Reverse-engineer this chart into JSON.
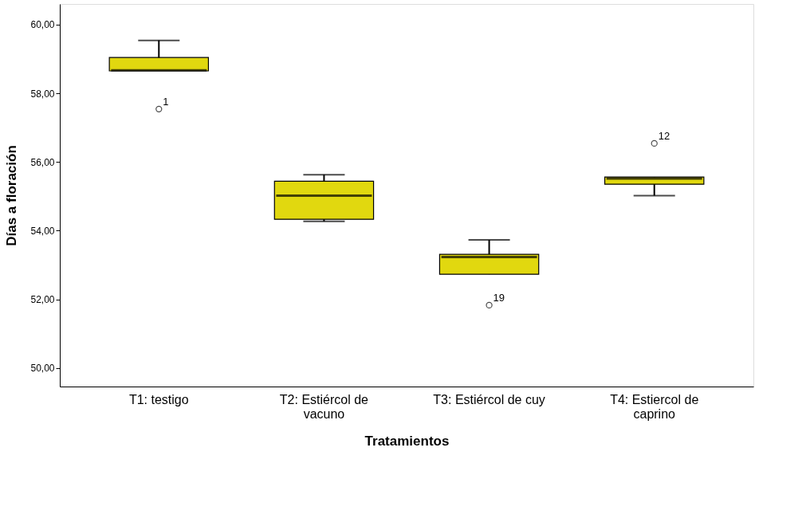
{
  "chart_data": {
    "type": "box",
    "xlabel": "Tratamientos",
    "ylabel": "Días a floración",
    "categories": [
      "T1: testigo",
      "T2: Estiércol de vacuno",
      "T3: Estiércol de cuy",
      "T4: Estiercol de caprino"
    ],
    "series": [
      {
        "color": "#e1d80f",
        "boxes": [
          {
            "low": 58.65,
            "q1": 58.65,
            "median": 58.67,
            "q3": 59.04,
            "high": 59.54,
            "outliers": [
              57.54
            ]
          },
          {
            "low": 54.27,
            "q1": 54.33,
            "median": 55.02,
            "q3": 55.44,
            "high": 55.63
          },
          {
            "low": 52.73,
            "q1": 52.73,
            "median": 53.23,
            "q3": 53.31,
            "high": 53.73,
            "outliers": [
              51.83
            ]
          },
          {
            "low": 55.02,
            "q1": 55.35,
            "median": 55.52,
            "q3": 55.56,
            "high": 55.56,
            "outliers": [
              56.54
            ]
          }
        ]
      }
    ],
    "ylim": [
      49.46,
      60.6
    ],
    "yticks": [
      {
        "value": 50,
        "label": "50,00"
      },
      {
        "value": 52,
        "label": "52,00"
      },
      {
        "value": 54,
        "label": "54,00"
      },
      {
        "value": 56,
        "label": "56,00"
      },
      {
        "value": 58,
        "label": "58,00"
      },
      {
        "value": 60,
        "label": "60,00"
      }
    ],
    "annotations": [
      "1",
      "19",
      "12"
    ],
    "grid": false
  }
}
